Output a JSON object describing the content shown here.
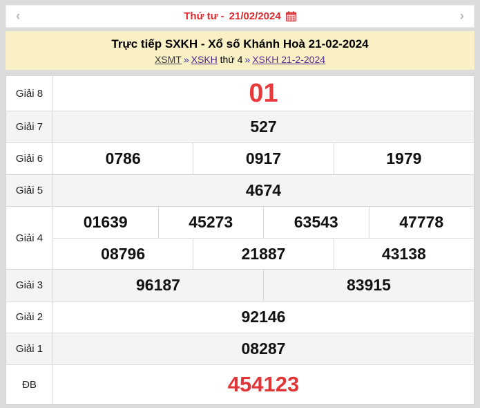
{
  "colors": {
    "accent_red": "#e02b2e",
    "prize_red": "#e23537",
    "banner_yellow": "#faf0c5",
    "page_gray": "#dbdbdb",
    "row_gray": "#f4f4f4",
    "link_purple": "#5b2d90"
  },
  "topbar": {
    "prev_label": "‹",
    "next_label": "›",
    "weekday": "Thứ tư -",
    "date": "21/02/2024",
    "calendar_icon": "calendar-icon"
  },
  "banner": {
    "title": "Trực tiếp SXKH - Xổ số Khánh Hoà 21-02-2024",
    "breadcrumb": {
      "region_link": "XSMT",
      "sep1": "»",
      "province_link": "XSKH",
      "middle_text": "thứ 4",
      "sep2": "»",
      "date_link": "XSKH 21-2-2024"
    }
  },
  "results": {
    "rows": [
      {
        "label": "Giải 8",
        "variant": "g8",
        "lines": [
          [
            "01"
          ]
        ]
      },
      {
        "label": "Giải 7",
        "lines": [
          [
            "527"
          ]
        ]
      },
      {
        "label": "Giải 6",
        "lines": [
          [
            "0786",
            "0917",
            "1979"
          ]
        ]
      },
      {
        "label": "Giải 5",
        "lines": [
          [
            "4674"
          ]
        ]
      },
      {
        "label": "Giải 4",
        "lines": [
          [
            "01639",
            "45273",
            "63543",
            "47778"
          ],
          [
            "08796",
            "21887",
            "43138"
          ]
        ]
      },
      {
        "label": "Giải 3",
        "lines": [
          [
            "96187",
            "83915"
          ]
        ]
      },
      {
        "label": "Giải 2",
        "lines": [
          [
            "92146"
          ]
        ]
      },
      {
        "label": "Giải 1",
        "lines": [
          [
            "08287"
          ]
        ]
      },
      {
        "label": "ĐB",
        "variant": "db",
        "lines": [
          [
            "454123"
          ]
        ]
      }
    ]
  }
}
